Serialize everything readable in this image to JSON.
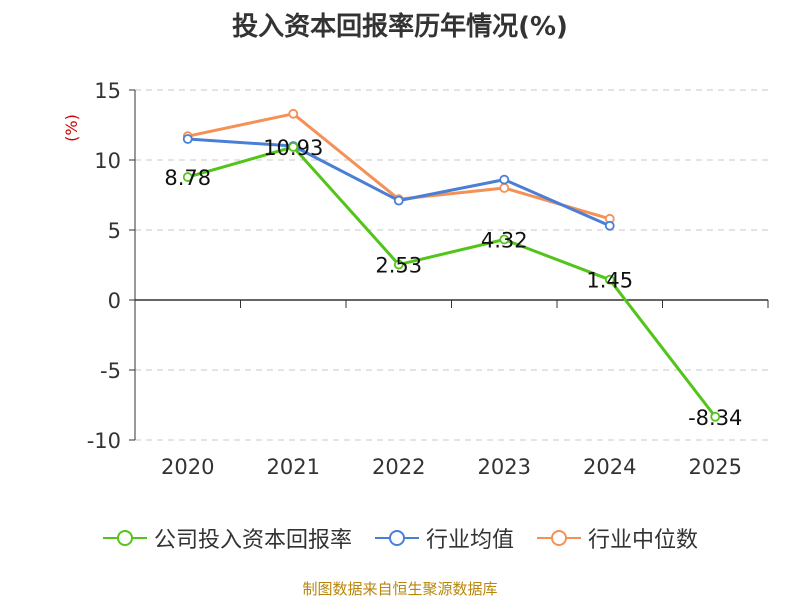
{
  "title": "投入资本回报率历年情况(%)",
  "unit_label": "(%)",
  "source_text": "制图数据来自恒生聚源数据库",
  "chart_data": {
    "type": "line",
    "categories": [
      "2020",
      "2021",
      "2022",
      "2023",
      "2024",
      "2025"
    ],
    "ylim": [
      -10,
      15
    ],
    "yticks": [
      15,
      10,
      5,
      0,
      -5,
      -10
    ],
    "grid": true,
    "legend_position": "bottom",
    "series": [
      {
        "name": "公司投入资本回报率",
        "color": "#52c41a",
        "values": [
          8.78,
          10.93,
          2.53,
          4.32,
          1.45,
          -8.34
        ],
        "labels": [
          "8.78",
          "10.93",
          "2.53",
          "4.32",
          "1.45",
          "-8.34"
        ]
      },
      {
        "name": "行业均值",
        "color": "#4a7fd6",
        "values": [
          11.5,
          11.0,
          7.1,
          8.6,
          5.3,
          null
        ]
      },
      {
        "name": "行业中位数",
        "color": "#f59056",
        "values": [
          11.7,
          13.3,
          7.2,
          8.0,
          5.8,
          null
        ]
      }
    ]
  }
}
